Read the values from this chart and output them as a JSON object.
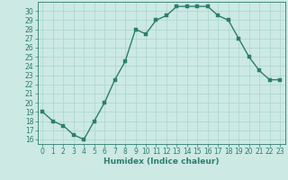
{
  "x": [
    0,
    1,
    2,
    3,
    4,
    5,
    6,
    7,
    8,
    9,
    10,
    11,
    12,
    13,
    14,
    15,
    16,
    17,
    18,
    19,
    20,
    21,
    22,
    23
  ],
  "y": [
    19,
    18,
    17.5,
    16.5,
    16,
    18,
    20,
    22.5,
    24.5,
    28,
    27.5,
    29,
    29.5,
    30.5,
    30.5,
    30.5,
    30.5,
    29.5,
    29,
    27,
    25,
    23.5,
    22.5,
    22.5
  ],
  "line_color": "#2e7d6d",
  "marker_color": "#2e7d6d",
  "bg_color": "#cce9e4",
  "grid_color": "#aad4ce",
  "xlabel": "Humidex (Indice chaleur)",
  "xlim": [
    -0.5,
    23.5
  ],
  "ylim": [
    15.5,
    31.0
  ],
  "yticks": [
    16,
    17,
    18,
    19,
    20,
    21,
    22,
    23,
    24,
    25,
    26,
    27,
    28,
    29,
    30
  ],
  "xticks": [
    0,
    1,
    2,
    3,
    4,
    5,
    6,
    7,
    8,
    9,
    10,
    11,
    12,
    13,
    14,
    15,
    16,
    17,
    18,
    19,
    20,
    21,
    22,
    23
  ],
  "tick_color": "#2e7d6d",
  "xlabel_color": "#2e7d6d",
  "tick_fontsize": 5.5,
  "xlabel_fontsize": 6.5,
  "linewidth": 1.0,
  "markersize": 2.2
}
